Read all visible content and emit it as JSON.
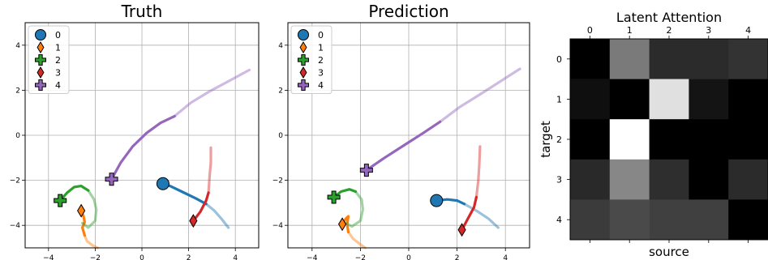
{
  "chart_data": [
    {
      "type": "scatter",
      "title": "Truth",
      "xlim": [
        -5,
        5
      ],
      "ylim": [
        -5,
        5
      ],
      "xticks": [
        -4,
        -2,
        0,
        2,
        4
      ],
      "yticks": [
        -4,
        -2,
        0,
        2,
        4
      ],
      "grid": true,
      "legend": {
        "location": "top-left",
        "entries": [
          {
            "label": "0",
            "color": "#1f77b4",
            "marker": "circle"
          },
          {
            "label": "1",
            "color": "#ff7f0e",
            "marker": "diamond-thin"
          },
          {
            "label": "2",
            "color": "#2ca02c",
            "marker": "plus"
          },
          {
            "label": "3",
            "color": "#d62728",
            "marker": "diamond-thin"
          },
          {
            "label": "4",
            "color": "#9467bd",
            "marker": "plus"
          }
        ]
      },
      "series": [
        {
          "name": "0",
          "color": "#1f77b4",
          "marker": "circle",
          "current": [
            0.9,
            -2.15
          ],
          "history": [
            [
              0.9,
              -2.15
            ],
            [
              1.2,
              -2.25
            ],
            [
              1.7,
              -2.5
            ],
            [
              2.3,
              -2.8
            ],
            [
              2.75,
              -3.05
            ]
          ],
          "future": [
            [
              2.75,
              -3.05
            ],
            [
              3.1,
              -3.35
            ],
            [
              3.4,
              -3.7
            ],
            [
              3.7,
              -4.1
            ]
          ]
        },
        {
          "name": "1",
          "color": "#ff7f0e",
          "marker": "diamond-thin",
          "current": [
            -2.6,
            -3.35
          ],
          "history": [
            [
              -2.6,
              -3.35
            ],
            [
              -2.5,
              -3.6
            ],
            [
              -2.45,
              -3.85
            ],
            [
              -2.55,
              -4.1
            ],
            [
              -2.45,
              -4.45
            ]
          ],
          "future": [
            [
              -2.45,
              -4.45
            ],
            [
              -2.35,
              -4.7
            ],
            [
              -2.1,
              -4.9
            ],
            [
              -1.9,
              -5.0
            ]
          ]
        },
        {
          "name": "2",
          "color": "#2ca02c",
          "marker": "plus",
          "current": [
            -3.5,
            -2.9
          ],
          "history": [
            [
              -3.5,
              -2.9
            ],
            [
              -3.2,
              -2.55
            ],
            [
              -2.9,
              -2.3
            ],
            [
              -2.6,
              -2.25
            ],
            [
              -2.3,
              -2.45
            ]
          ],
          "future": [
            [
              -2.3,
              -2.45
            ],
            [
              -2.05,
              -2.85
            ],
            [
              -1.95,
              -3.3
            ],
            [
              -2.0,
              -3.8
            ],
            [
              -2.3,
              -4.1
            ],
            [
              -2.55,
              -3.9
            ]
          ]
        },
        {
          "name": "3",
          "color": "#d62728",
          "marker": "diamond-thin",
          "current": [
            2.2,
            -3.8
          ],
          "history": [
            [
              2.2,
              -3.8
            ],
            [
              2.5,
              -3.4
            ],
            [
              2.75,
              -2.9
            ],
            [
              2.85,
              -2.55
            ]
          ],
          "future": [
            [
              2.85,
              -2.55
            ],
            [
              2.9,
              -1.8
            ],
            [
              2.95,
              -1.2
            ],
            [
              2.95,
              -0.55
            ]
          ]
        },
        {
          "name": "4",
          "color": "#9467bd",
          "marker": "plus",
          "current": [
            -1.3,
            -1.95
          ],
          "history": [
            [
              -1.3,
              -1.95
            ],
            [
              -0.9,
              -1.2
            ],
            [
              -0.4,
              -0.5
            ],
            [
              0.2,
              0.1
            ],
            [
              0.8,
              0.55
            ],
            [
              1.4,
              0.85
            ]
          ],
          "future": [
            [
              1.4,
              0.85
            ],
            [
              2.1,
              1.45
            ],
            [
              2.9,
              1.95
            ],
            [
              3.8,
              2.45
            ],
            [
              4.6,
              2.9
            ]
          ]
        }
      ]
    },
    {
      "type": "scatter",
      "title": "Prediction",
      "xlim": [
        -5,
        5
      ],
      "ylim": [
        -5,
        5
      ],
      "xticks": [
        -4,
        -2,
        0,
        2,
        4
      ],
      "yticks": [
        -4,
        -2,
        0,
        2,
        4
      ],
      "grid": true,
      "legend": {
        "location": "top-left",
        "entries": [
          {
            "label": "0",
            "color": "#1f77b4",
            "marker": "circle"
          },
          {
            "label": "1",
            "color": "#ff7f0e",
            "marker": "diamond-thin"
          },
          {
            "label": "2",
            "color": "#2ca02c",
            "marker": "plus"
          },
          {
            "label": "3",
            "color": "#d62728",
            "marker": "diamond-thin"
          },
          {
            "label": "4",
            "color": "#9467bd",
            "marker": "plus"
          }
        ]
      },
      "series": [
        {
          "name": "0",
          "color": "#1f77b4",
          "marker": "circle",
          "current": [
            1.15,
            -2.9
          ],
          "history": [
            [
              1.15,
              -2.9
            ],
            [
              1.6,
              -2.85
            ],
            [
              2.0,
              -2.9
            ],
            [
              2.3,
              -3.05
            ]
          ],
          "future": [
            [
              2.3,
              -3.05
            ],
            [
              2.8,
              -3.35
            ],
            [
              3.3,
              -3.7
            ],
            [
              3.7,
              -4.1
            ]
          ]
        },
        {
          "name": "1",
          "color": "#ff7f0e",
          "marker": "diamond-thin",
          "current": [
            -2.75,
            -3.95
          ],
          "history": [
            [
              -2.75,
              -3.95
            ],
            [
              -2.6,
              -3.7
            ],
            [
              -2.5,
              -3.6
            ],
            [
              -2.55,
              -3.95
            ],
            [
              -2.5,
              -4.3
            ]
          ],
          "future": [
            [
              -2.5,
              -4.3
            ],
            [
              -2.3,
              -4.6
            ],
            [
              -2.0,
              -4.85
            ],
            [
              -1.8,
              -5.0
            ]
          ]
        },
        {
          "name": "2",
          "color": "#2ca02c",
          "marker": "plus",
          "current": [
            -3.1,
            -2.75
          ],
          "history": [
            [
              -3.1,
              -2.75
            ],
            [
              -2.8,
              -2.5
            ],
            [
              -2.45,
              -2.4
            ],
            [
              -2.2,
              -2.5
            ]
          ],
          "future": [
            [
              -2.2,
              -2.5
            ],
            [
              -1.95,
              -2.85
            ],
            [
              -1.9,
              -3.3
            ],
            [
              -2.0,
              -3.8
            ],
            [
              -2.35,
              -4.05
            ],
            [
              -2.6,
              -3.9
            ]
          ]
        },
        {
          "name": "3",
          "color": "#d62728",
          "marker": "diamond-thin",
          "current": [
            2.2,
            -4.2
          ],
          "history": [
            [
              2.2,
              -4.2
            ],
            [
              2.45,
              -3.7
            ],
            [
              2.7,
              -3.2
            ],
            [
              2.8,
              -2.75
            ]
          ],
          "future": [
            [
              2.8,
              -2.75
            ],
            [
              2.88,
              -2.0
            ],
            [
              2.92,
              -1.3
            ],
            [
              2.95,
              -0.5
            ]
          ]
        },
        {
          "name": "4",
          "color": "#9467bd",
          "marker": "plus",
          "current": [
            -1.75,
            -1.55
          ],
          "history": [
            [
              -1.75,
              -1.55
            ],
            [
              -1.0,
              -1.0
            ],
            [
              -0.2,
              -0.45
            ],
            [
              0.6,
              0.1
            ],
            [
              1.3,
              0.6
            ]
          ],
          "future": [
            [
              1.3,
              0.6
            ],
            [
              2.1,
              1.25
            ],
            [
              3.0,
              1.85
            ],
            [
              3.8,
              2.4
            ],
            [
              4.6,
              2.95
            ]
          ]
        }
      ]
    },
    {
      "type": "heatmap",
      "title": "Latent Attention",
      "xlabel": "source",
      "ylabel": "target",
      "x_categories": [
        "0",
        "1",
        "2",
        "3",
        "4"
      ],
      "y_categories": [
        "0",
        "1",
        "2",
        "3",
        "4"
      ],
      "colormap": "gray",
      "values": [
        [
          0.0,
          0.48,
          0.17,
          0.17,
          0.2
        ],
        [
          0.06,
          0.0,
          0.88,
          0.08,
          0.0
        ],
        [
          0.0,
          1.0,
          0.0,
          0.0,
          0.0
        ],
        [
          0.16,
          0.53,
          0.18,
          0.0,
          0.17
        ],
        [
          0.23,
          0.29,
          0.25,
          0.25,
          0.0
        ]
      ]
    }
  ]
}
